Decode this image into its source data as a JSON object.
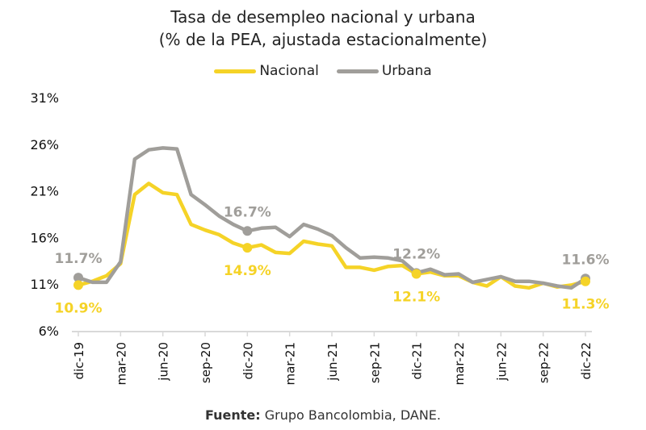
{
  "chart_data": {
    "type": "line",
    "title": "Tasa de desempleo nacional y urbana",
    "subtitle": "(% de la PEA, ajustada estacionalmente)",
    "xlabel": "",
    "ylabel": "",
    "ylim": [
      6,
      31
    ],
    "yticks": [
      "31%",
      "26%",
      "21%",
      "16%",
      "11%",
      "6%"
    ],
    "ytick_values": [
      31,
      26,
      21,
      16,
      11,
      6
    ],
    "xtick_labels": [
      "dic-19",
      "mar-20",
      "jun-20",
      "sep-20",
      "dic-20",
      "mar-21",
      "jun-21",
      "sep-21",
      "dic-21",
      "mar-22",
      "jun-22",
      "sep-22",
      "dic-22"
    ],
    "xtick_every": 3,
    "grid": false,
    "legend_position": "top-center",
    "x": [
      "dic-19",
      "ene-20",
      "feb-20",
      "mar-20",
      "abr-20",
      "may-20",
      "jun-20",
      "jul-20",
      "ago-20",
      "sep-20",
      "oct-20",
      "nov-20",
      "dic-20",
      "ene-21",
      "feb-21",
      "mar-21",
      "abr-21",
      "may-21",
      "jun-21",
      "jul-21",
      "ago-21",
      "sep-21",
      "oct-21",
      "nov-21",
      "dic-21",
      "ene-22",
      "feb-22",
      "mar-22",
      "abr-22",
      "may-22",
      "jun-22",
      "jul-22",
      "ago-22",
      "sep-22",
      "oct-22",
      "nov-22",
      "dic-22"
    ],
    "series": [
      {
        "name": "Nacional",
        "color": "#F5D327",
        "values": [
          10.9,
          11.3,
          11.9,
          13.2,
          20.6,
          21.8,
          20.8,
          20.6,
          17.4,
          16.8,
          16.3,
          15.4,
          14.9,
          15.2,
          14.4,
          14.3,
          15.6,
          15.3,
          15.1,
          12.8,
          12.8,
          12.5,
          12.9,
          13.0,
          12.1,
          12.3,
          11.9,
          11.9,
          11.2,
          10.8,
          11.8,
          10.8,
          10.6,
          11.1,
          10.7,
          10.9,
          11.3
        ]
      },
      {
        "name": "Urbana",
        "color": "#A09E9A",
        "values": [
          11.7,
          11.2,
          11.2,
          13.4,
          24.4,
          25.4,
          25.6,
          25.5,
          20.6,
          19.5,
          18.3,
          17.4,
          16.7,
          17.0,
          17.1,
          16.1,
          17.4,
          16.9,
          16.2,
          14.9,
          13.8,
          13.9,
          13.8,
          13.5,
          12.2,
          12.6,
          12.0,
          12.1,
          11.2,
          11.5,
          11.8,
          11.3,
          11.3,
          11.1,
          10.8,
          10.6,
          11.6
        ]
      }
    ],
    "annotations": [
      {
        "series": "Urbana",
        "x": "dic-19",
        "text": "11.7%",
        "position": "above"
      },
      {
        "series": "Nacional",
        "x": "dic-19",
        "text": "10.9%",
        "position": "below"
      },
      {
        "series": "Urbana",
        "x": "dic-20",
        "text": "16.7%",
        "position": "above"
      },
      {
        "series": "Nacional",
        "x": "dic-20",
        "text": "14.9%",
        "position": "below"
      },
      {
        "series": "Urbana",
        "x": "dic-21",
        "text": "12.2%",
        "position": "above"
      },
      {
        "series": "Nacional",
        "x": "dic-21",
        "text": "12.1%",
        "position": "below"
      },
      {
        "series": "Urbana",
        "x": "dic-22",
        "text": "11.6%",
        "position": "above"
      },
      {
        "series": "Nacional",
        "x": "dic-22",
        "text": "11.3%",
        "position": "below"
      }
    ],
    "source_label": "Fuente:",
    "source_text": "Grupo Bancolombia, DANE."
  },
  "legend": {
    "items": [
      {
        "label": "Nacional",
        "color": "#F5D327"
      },
      {
        "label": "Urbana",
        "color": "#A09E9A"
      }
    ]
  },
  "axis_color": "#D9D9D9"
}
